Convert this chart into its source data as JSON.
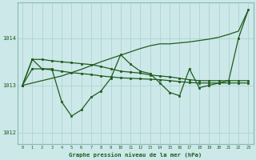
{
  "title": "Graphe pression niveau de la mer (hPa)",
  "hours": [
    0,
    1,
    2,
    3,
    4,
    5,
    6,
    7,
    8,
    9,
    10,
    11,
    12,
    13,
    14,
    15,
    16,
    17,
    18,
    19,
    20,
    21,
    22,
    23
  ],
  "ylim": [
    1011.75,
    1014.75
  ],
  "yticks": [
    1012,
    1013,
    1014
  ],
  "bg_color": "#cce8e8",
  "grid_color": "#aacfcf",
  "line_color": "#1f5c1f",
  "trend_line": [
    1013.0,
    1013.05,
    1013.1,
    1013.15,
    1013.2,
    1013.27,
    1013.34,
    1013.42,
    1013.5,
    1013.57,
    1013.64,
    1013.71,
    1013.78,
    1013.84,
    1013.88,
    1013.88,
    1013.9,
    1013.92,
    1013.95,
    1013.98,
    1014.02,
    1014.08,
    1014.15,
    1014.6
  ],
  "flat_line1": [
    1013.0,
    1013.55,
    1013.55,
    1013.52,
    1013.5,
    1013.48,
    1013.46,
    1013.44,
    1013.4,
    1013.35,
    1013.3,
    1013.28,
    1013.26,
    1013.22,
    1013.2,
    1013.18,
    1013.15,
    1013.12,
    1013.1,
    1013.1,
    1013.1,
    1013.1,
    1013.1,
    1013.1
  ],
  "flat_line2": [
    1013.0,
    1013.35,
    1013.35,
    1013.33,
    1013.3,
    1013.27,
    1013.25,
    1013.23,
    1013.2,
    1013.18,
    1013.16,
    1013.15,
    1013.14,
    1013.13,
    1013.12,
    1013.1,
    1013.08,
    1013.06,
    1013.05,
    1013.05,
    1013.05,
    1013.05,
    1013.05,
    1013.05
  ],
  "zigzag_line": [
    1013.0,
    1013.55,
    1013.35,
    1013.35,
    1012.65,
    1012.35,
    1012.48,
    1012.75,
    1012.88,
    1013.15,
    1013.65,
    1013.45,
    1013.3,
    1013.25,
    1013.05,
    1012.85,
    1012.78,
    1013.35,
    1012.95,
    1013.0,
    1013.05,
    1013.1,
    1014.0,
    1014.6
  ]
}
